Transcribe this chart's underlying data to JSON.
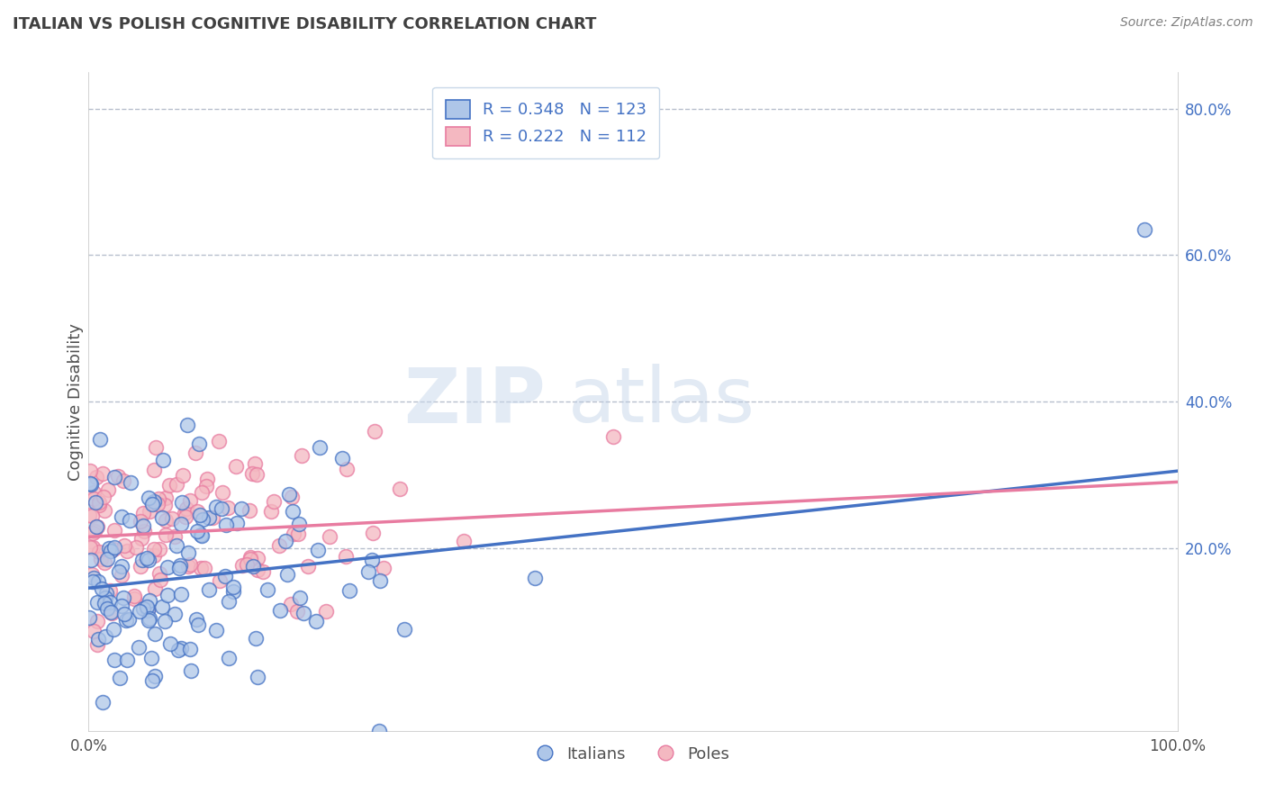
{
  "title": "ITALIAN VS POLISH COGNITIVE DISABILITY CORRELATION CHART",
  "source": "Source: ZipAtlas.com",
  "ylabel": "Cognitive Disability",
  "xlim": [
    0.0,
    1.0
  ],
  "ylim": [
    -0.05,
    0.85
  ],
  "x_ticks": [
    0.0,
    0.2,
    0.4,
    0.6,
    0.8,
    1.0
  ],
  "x_tick_labels": [
    "0.0%",
    "",
    "",
    "",
    "",
    "100.0%"
  ],
  "y_ticks": [
    0.2,
    0.4,
    0.6,
    0.8
  ],
  "y_tick_labels": [
    "20.0%",
    "40.0%",
    "60.0%",
    "80.0%"
  ],
  "italian_color": "#4472c4",
  "italian_face": "#aec6e8",
  "polish_color": "#e87ba0",
  "polish_face": "#f4b8c1",
  "watermark_zip": "ZIP",
  "watermark_atlas": "atlas",
  "title_color": "#404040",
  "grid_color": "#b0b8c8",
  "r_italian": 0.348,
  "n_italian": 123,
  "r_polish": 0.222,
  "n_polish": 112,
  "italian_intercept": 0.145,
  "italian_slope": 0.16,
  "polish_intercept": 0.215,
  "polish_slope": 0.075,
  "legend_text_color": "#4472c4",
  "ytick_color": "#4472c4"
}
